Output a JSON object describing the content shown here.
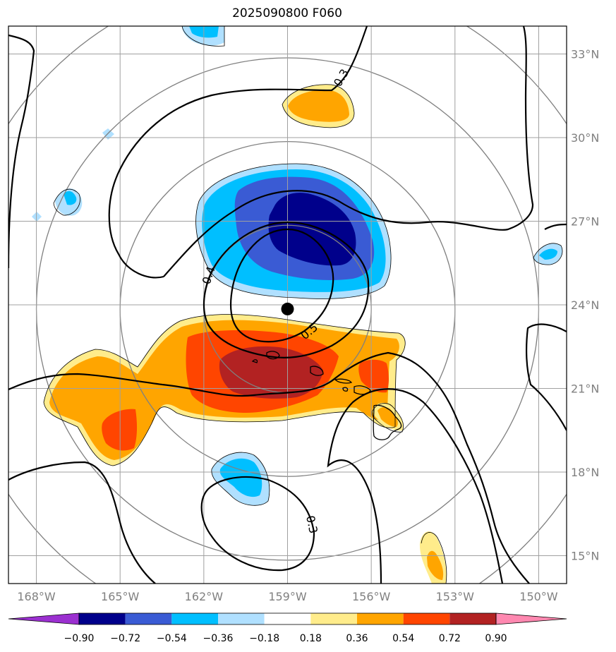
{
  "title": "2025090800 F060",
  "map": {
    "lon_ticks": [
      {
        "value": -168,
        "label": "168°W"
      },
      {
        "value": -165,
        "label": "165°W"
      },
      {
        "value": -162,
        "label": "162°W"
      },
      {
        "value": -159,
        "label": "159°W"
      },
      {
        "value": -156,
        "label": "156°W"
      },
      {
        "value": -153,
        "label": "153°W"
      },
      {
        "value": -150,
        "label": "150°W"
      }
    ],
    "lat_ticks": [
      {
        "value": 33,
        "label": "33°N"
      },
      {
        "value": 30,
        "label": "30°N"
      },
      {
        "value": 27,
        "label": "27°N"
      },
      {
        "value": 24,
        "label": "24°N"
      },
      {
        "value": 21,
        "label": "21°N"
      },
      {
        "value": 18,
        "label": "18°N"
      },
      {
        "value": 15,
        "label": "15°N"
      }
    ],
    "lon_range": [
      -169,
      -149
    ],
    "lat_range": [
      14,
      34
    ],
    "center": {
      "lon": -159,
      "lat": 23.85
    },
    "range_ring_radii_deg": [
      3,
      6,
      9
    ],
    "contour_labels": [
      "0.3",
      "0.4",
      "0.5",
      "0.3"
    ]
  },
  "colorbar": {
    "colors": [
      "#9b30d0",
      "#00008b",
      "#3a5bd4",
      "#00bfff",
      "#b0e0ff",
      "#ffffff",
      "#ffec8b",
      "#ffa500",
      "#ff4500",
      "#b22222",
      "#ff88b0"
    ],
    "tick_labels": [
      "−0.90",
      "−0.72",
      "−0.54",
      "−0.36",
      "−0.18",
      "0.18",
      "0.36",
      "0.54",
      "0.72",
      "0.90"
    ]
  },
  "colors": {
    "grid": "#a0a0a0",
    "ring": "#808080",
    "contour": "#000000",
    "center_dot": "#000000"
  }
}
